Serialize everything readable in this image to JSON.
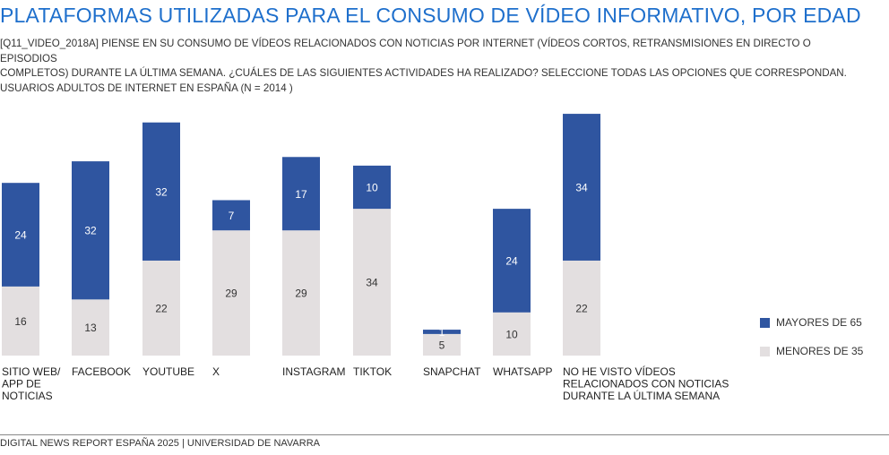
{
  "title": "PLATAFORMAS UTILIZADAS PARA EL CONSUMO DE VÍDEO INFORMATIVO, POR EDAD",
  "subtitle_lines": [
    "[Q11_VIDEO_2018a] PIENSE EN SU CONSUMO DE VÍDEOS RELACIONADOS CON NOTICIAS POR INTERNET (VÍDEOS CORTOS, RETRANSMISIONES EN DIRECTO O EPISODIOS",
    "COMPLETOS) DURANTE LA ÚLTIMA SEMANA. ¿CUÁLES DE LAS SIGUIENTES ACTIVIDADES HA REALIZADO? SELECCIONE TODAS LAS OPCIONES QUE CORRESPONDAN.",
    "USUARIOS ADULTOS DE INTERNET EN ESPAÑA (N = 2014 )"
  ],
  "footer": "DIGITAL NEWS REPORT ESPAÑA 2025 | UNIVERSIDAD DE NAVARRA",
  "colors": {
    "title": "#1e6fcc",
    "mayores": "#2f55a0",
    "menores": "#e3dfe0"
  },
  "chart_data": {
    "type": "bar",
    "stacked": true,
    "categories": [
      [
        "SITIO WEB/",
        "APP DE",
        "NOTICIAS"
      ],
      [
        "FACEBOOK"
      ],
      [
        "YOUTUBE"
      ],
      [
        "X"
      ],
      [
        "INSTAGRAM"
      ],
      [
        "TIKTOK"
      ],
      [
        "SNAPCHAT"
      ],
      [
        "WHATSAPP"
      ],
      [
        "NO HE VISTO VÍDEOS",
        "RELACIONADOS CON NOTICIAS",
        "DURANTE LA ÚLTIMA SEMANA"
      ]
    ],
    "series": [
      {
        "name": "MENORES DE 35",
        "color": "#e3dfe0",
        "values": [
          16,
          13,
          22,
          29,
          29,
          34,
          5,
          10,
          22
        ]
      },
      {
        "name": "MAYORES DE 65",
        "color": "#2f55a0",
        "values": [
          24,
          32,
          32,
          7,
          17,
          10,
          1,
          24,
          34
        ]
      }
    ],
    "legend": [
      {
        "name": "MAYORES DE 65",
        "color": "#2f55a0"
      },
      {
        "name": "MENORES DE 35",
        "color": "#e3dfe0"
      }
    ],
    "legend_position": "right",
    "grid": false
  }
}
